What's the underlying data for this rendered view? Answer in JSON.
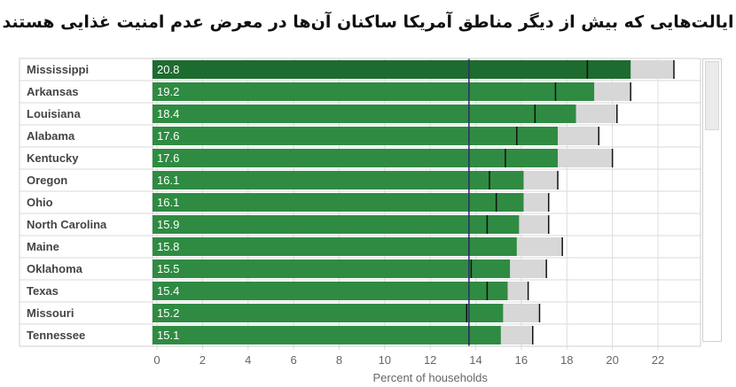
{
  "title": "ایالت‌هایی که بیش از دیگر مناطق آمریکا ساکنان آن‌ها در معرض عدم امنیت غذایی هستند",
  "chart_data": {
    "type": "bar",
    "orientation": "horizontal",
    "categories": [
      "Mississippi",
      "Arkansas",
      "Louisiana",
      "Alabama",
      "Kentucky",
      "Oregon",
      "Ohio",
      "North Carolina",
      "Maine",
      "Oklahoma",
      "Texas",
      "Missouri",
      "Tennessee"
    ],
    "values": [
      20.8,
      19.2,
      18.4,
      17.6,
      17.6,
      16.1,
      16.1,
      15.9,
      15.8,
      15.5,
      15.4,
      15.2,
      15.1
    ],
    "range_low": [
      18.9,
      17.5,
      16.6,
      15.8,
      15.3,
      14.6,
      14.9,
      14.5,
      13.7,
      13.8,
      14.5,
      13.6,
      13.7
    ],
    "range_high": [
      22.7,
      20.8,
      20.2,
      19.4,
      20.0,
      17.6,
      17.2,
      17.2,
      17.8,
      17.1,
      16.3,
      16.8,
      16.5
    ],
    "national_average": 13.7,
    "xlabel": "Percent of households",
    "xlim": [
      0,
      24
    ],
    "xticks": [
      0,
      2,
      4,
      6,
      8,
      10,
      12,
      14,
      16,
      18,
      20,
      22
    ],
    "grid": true,
    "colors": {
      "bar_top": "#1e6b30",
      "bar": "#2f8b42",
      "range": "#d7d7d7",
      "average_line": "#2a2f6b",
      "grid": "#dcdcdc"
    }
  }
}
